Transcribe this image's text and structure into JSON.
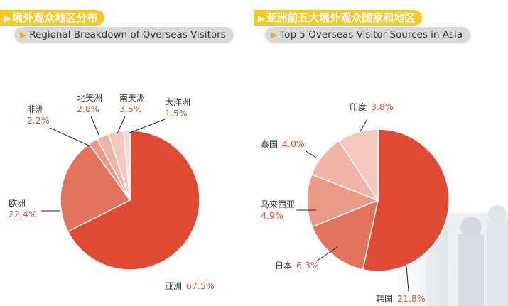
{
  "colors": {
    "accent_yellow": "#f7c928",
    "label_red": "#e0503a",
    "slices": [
      "#e04a32",
      "#e4735d",
      "#eb9a87",
      "#f0b3a6",
      "#f4c8be",
      "#f7d9d2"
    ]
  },
  "left": {
    "title_cn": "境外观众地区分布",
    "title_en": "Regional Breakdown of Overseas Visitors"
  },
  "right": {
    "title_cn": "亚洲前五大境外观众国家和地区",
    "title_en": "Top 5 Overseas Visitor Sources in Asia"
  },
  "chart_data": [
    {
      "type": "pie",
      "title": "境外观众地区分布",
      "subtitle": "Regional Breakdown of Overseas Visitors",
      "slices": [
        {
          "label": "亚洲",
          "value": 67.5,
          "display": "67.5%"
        },
        {
          "label": "欧洲",
          "value": 22.4,
          "display": "22.4%"
        },
        {
          "label": "非洲",
          "value": 2.2,
          "display": "2.2%"
        },
        {
          "label": "北美洲",
          "value": 2.8,
          "display": "2.8%"
        },
        {
          "label": "南美洲",
          "value": 3.5,
          "display": "3.5%"
        },
        {
          "label": "大洋洲",
          "value": 1.5,
          "display": "1.5%"
        }
      ]
    },
    {
      "type": "pie",
      "title": "亚洲前五大境外观众国家和地区",
      "subtitle": "Top 5 Overseas Visitor Sources in Asia",
      "slices": [
        {
          "label": "韩国",
          "value": 21.8,
          "display": "21.8%"
        },
        {
          "label": "日本",
          "value": 6.3,
          "display": "6.3%"
        },
        {
          "label": "马来西亚",
          "value": 4.9,
          "display": "4.9%"
        },
        {
          "label": "泰国",
          "value": 4.0,
          "display": "4.0%"
        },
        {
          "label": "印度",
          "value": 3.8,
          "display": "3.8%"
        }
      ]
    }
  ]
}
